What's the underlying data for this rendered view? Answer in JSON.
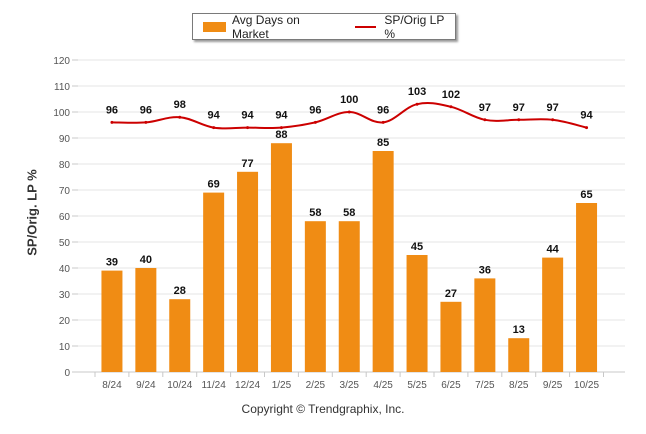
{
  "chart_data": {
    "type": "bar",
    "title": "",
    "xlabel": "",
    "ylabel": "SP/Orig. LP %",
    "ylim": [
      0,
      120
    ],
    "yticks": [
      0,
      10,
      20,
      30,
      40,
      50,
      60,
      70,
      80,
      90,
      100,
      110,
      120
    ],
    "grid": true,
    "legend_position": "top-center",
    "categories": [
      "8/24",
      "9/24",
      "10/24",
      "11/24",
      "12/24",
      "1/25",
      "2/25",
      "3/25",
      "4/25",
      "5/25",
      "6/25",
      "7/25",
      "8/25",
      "9/25",
      "10/25"
    ],
    "series": [
      {
        "name": "Avg Days on Market",
        "type": "bar",
        "color": "#f08c14",
        "values": [
          39,
          40,
          28,
          69,
          77,
          88,
          58,
          58,
          85,
          45,
          27,
          36,
          13,
          44,
          65
        ]
      },
      {
        "name": "SP/Orig LP %",
        "type": "line",
        "color": "#cc0000",
        "values": [
          96,
          96,
          98,
          94,
          94,
          94,
          96,
          100,
          96,
          103,
          102,
          97,
          97,
          97,
          94
        ]
      }
    ]
  },
  "legend": {
    "bar_label": "Avg Days on Market",
    "line_label": "SP/Orig LP %"
  },
  "footer": {
    "copyright": "Copyright © Trendgraphix, Inc."
  }
}
